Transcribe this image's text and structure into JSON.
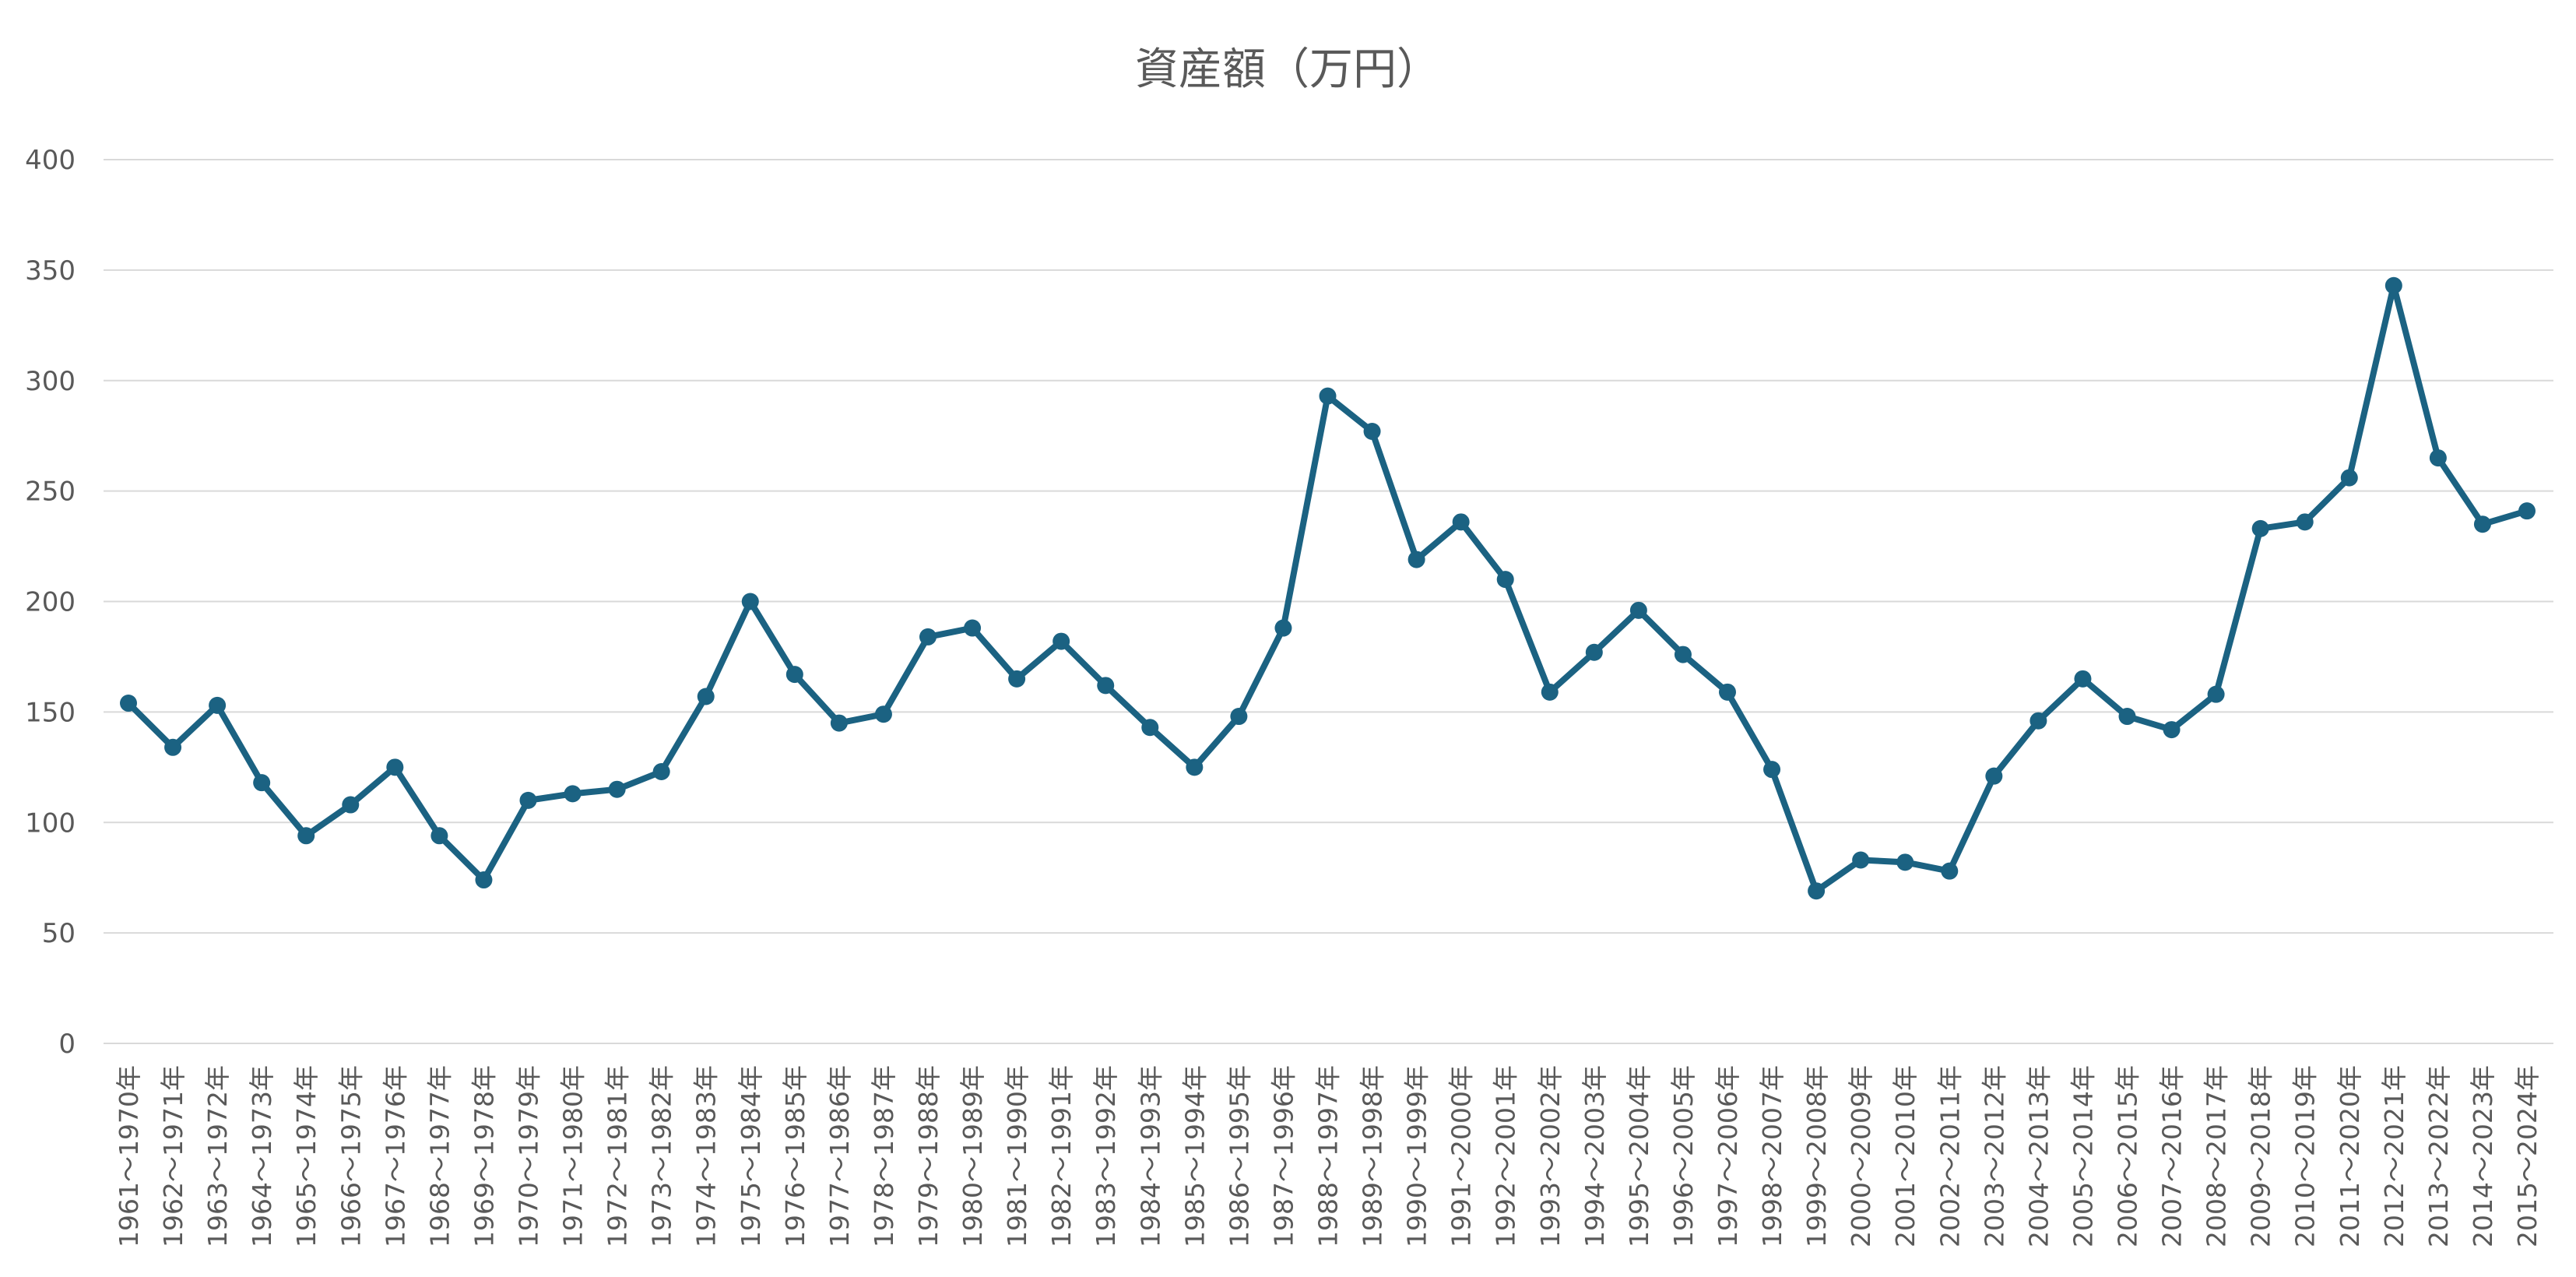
{
  "chart_data": {
    "type": "line",
    "title": "資産額（万円）",
    "xlabel": "",
    "ylabel": "",
    "ylim": [
      0,
      400
    ],
    "yticks": [
      0,
      50,
      100,
      150,
      200,
      250,
      300,
      350,
      400
    ],
    "grid": true,
    "legend": "none",
    "colors": {
      "series": "#1b6282",
      "grid": "#d9d9d9",
      "text": "#595959"
    },
    "categories": [
      "1961～1970年",
      "1962～1971年",
      "1963～1972年",
      "1964～1973年",
      "1965～1974年",
      "1966～1975年",
      "1967～1976年",
      "1968～1977年",
      "1969～1978年",
      "1970～1979年",
      "1971～1980年",
      "1972～1981年",
      "1973～1982年",
      "1974～1983年",
      "1975～1984年",
      "1976～1985年",
      "1977～1986年",
      "1978～1987年",
      "1979～1988年",
      "1980～1989年",
      "1981～1990年",
      "1982～1991年",
      "1983～1992年",
      "1984～1993年",
      "1985～1994年",
      "1986～1995年",
      "1987～1996年",
      "1988～1997年",
      "1989～1998年",
      "1990～1999年",
      "1991～2000年",
      "1992～2001年",
      "1993～2002年",
      "1994～2003年",
      "1995～2004年",
      "1996～2005年",
      "1997～2006年",
      "1998～2007年",
      "1999～2008年",
      "2000～2009年",
      "2001～2010年",
      "2002～2011年",
      "2003～2012年",
      "2004～2013年",
      "2005～2014年",
      "2006～2015年",
      "2007～2016年",
      "2008～2017年",
      "2009～2018年",
      "2010～2019年",
      "2011～2020年",
      "2012～2021年",
      "2013～2022年",
      "2014～2023年",
      "2015～2024年"
    ],
    "series": [
      {
        "values": [
          154,
          134,
          153,
          118,
          94,
          108,
          125,
          94,
          74,
          110,
          113,
          115,
          123,
          157,
          200,
          167,
          145,
          149,
          184,
          188,
          165,
          182,
          162,
          143,
          125,
          148,
          188,
          293,
          277,
          219,
          236,
          210,
          159,
          177,
          196,
          176,
          159,
          124,
          69,
          83,
          82,
          78,
          121,
          146,
          165,
          148,
          142,
          158,
          233,
          236,
          256,
          343,
          265,
          235,
          241
        ]
      }
    ]
  }
}
